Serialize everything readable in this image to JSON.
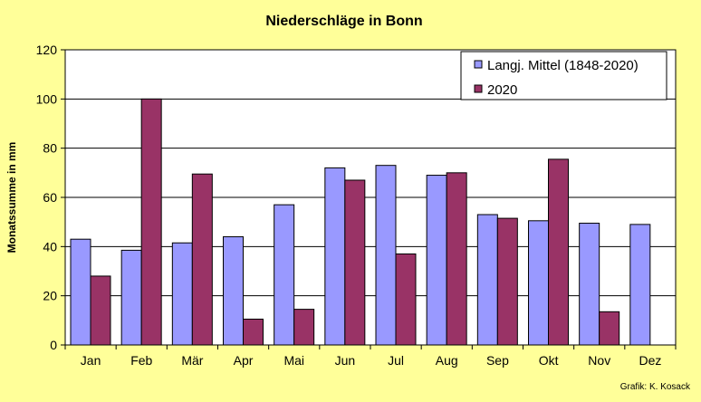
{
  "chart_data": {
    "type": "bar",
    "title": "Niederschläge in Bonn",
    "xlabel": "",
    "ylabel": "Monatssumme in mm",
    "ylim": [
      0,
      120
    ],
    "yticks": [
      0,
      20,
      40,
      60,
      80,
      100,
      120
    ],
    "grid": true,
    "legend_position": "top-right",
    "categories": [
      "Jan",
      "Feb",
      "Mär",
      "Apr",
      "Mai",
      "Jun",
      "Jul",
      "Aug",
      "Sep",
      "Okt",
      "Nov",
      "Dez"
    ],
    "series": [
      {
        "name": "Langj. Mittel (1848-2020)",
        "color": "#9999ff",
        "values": [
          43,
          38.5,
          41.5,
          44,
          57,
          72,
          73,
          69,
          53,
          50.5,
          49.5,
          49
        ]
      },
      {
        "name": "2020",
        "color": "#993366",
        "values": [
          28,
          100,
          69.5,
          10.5,
          14.5,
          67,
          37,
          70,
          51.5,
          75.5,
          13.5,
          null
        ]
      }
    ],
    "credit": "Grafik:  K. Kosack",
    "colors": {
      "background": "#ffff99",
      "plot_area": "#ffffff",
      "axis": "#000000"
    }
  }
}
